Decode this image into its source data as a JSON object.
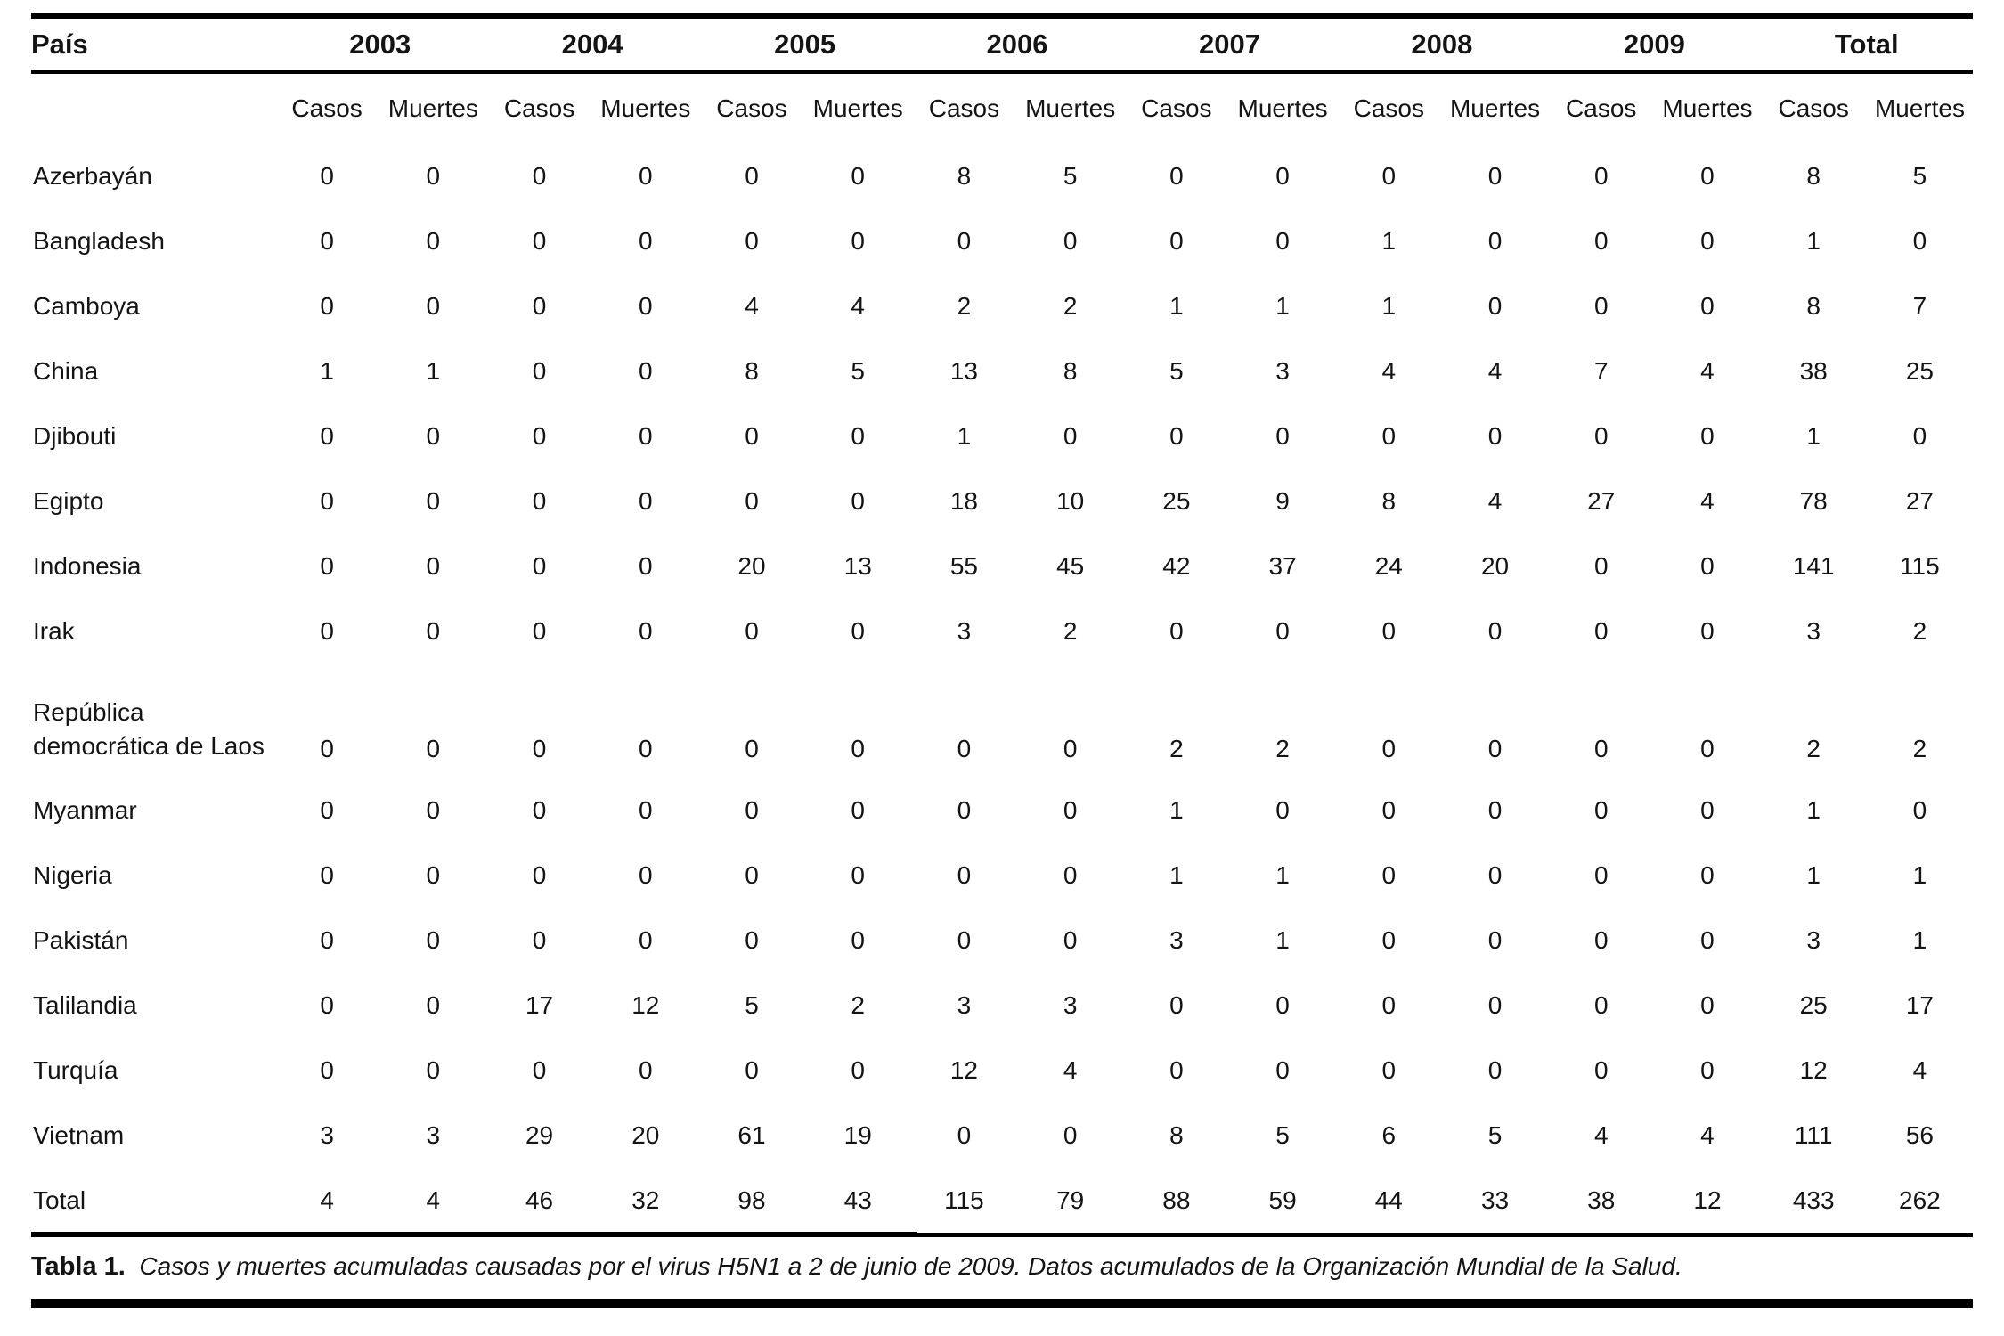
{
  "colors": {
    "text": "#141414",
    "rule": "#000000",
    "background": "#ffffff"
  },
  "table": {
    "corner_header": "País",
    "year_headers": [
      "2003",
      "2004",
      "2005",
      "2006",
      "2007",
      "2008",
      "2009",
      "Total"
    ],
    "sub_headers": {
      "cases": "Casos",
      "deaths": "Muertes"
    },
    "rows": [
      {
        "country": "Azerbayán",
        "values": [
          "0",
          "0",
          "0",
          "0",
          "0",
          "0",
          "8",
          "5",
          "0",
          "0",
          "0",
          "0",
          "0",
          "0",
          "8",
          "5"
        ]
      },
      {
        "country": "Bangladesh",
        "values": [
          "0",
          "0",
          "0",
          "0",
          "0",
          "0",
          "0",
          "0",
          "0",
          "0",
          "1",
          "0",
          "0",
          "0",
          "1",
          "0"
        ]
      },
      {
        "country": "Camboya",
        "values": [
          "0",
          "0",
          "0",
          "0",
          "4",
          "4",
          "2",
          "2",
          "1",
          "1",
          "1",
          "0",
          "0",
          "0",
          "8",
          "7"
        ]
      },
      {
        "country": "China",
        "values": [
          "1",
          "1",
          "0",
          "0",
          "8",
          "5",
          "13",
          "8",
          "5",
          "3",
          "4",
          "4",
          "7",
          "4",
          "38",
          "25"
        ]
      },
      {
        "country": "Djibouti",
        "values": [
          "0",
          "0",
          "0",
          "0",
          "0",
          "0",
          "1",
          "0",
          "0",
          "0",
          "0",
          "0",
          "0",
          "0",
          "1",
          "0"
        ]
      },
      {
        "country": "Egipto",
        "values": [
          "0",
          "0",
          "0",
          "0",
          "0",
          "0",
          "18",
          "10",
          "25",
          "9",
          "8",
          "4",
          "27",
          "4",
          "78",
          "27"
        ]
      },
      {
        "country": "Indonesia",
        "values": [
          "0",
          "0",
          "0",
          "0",
          "20",
          "13",
          "55",
          "45",
          "42",
          "37",
          "24",
          "20",
          "0",
          "0",
          "141",
          "115"
        ]
      },
      {
        "country": "Irak",
        "values": [
          "0",
          "0",
          "0",
          "0",
          "0",
          "0",
          "3",
          "2",
          "0",
          "0",
          "0",
          "0",
          "0",
          "0",
          "3",
          "2"
        ]
      },
      {
        "country": "República democrática de Laos",
        "wrap": true,
        "values": [
          "0",
          "0",
          "0",
          "0",
          "0",
          "0",
          "0",
          "0",
          "2",
          "2",
          "0",
          "0",
          "0",
          "0",
          "2",
          "2"
        ]
      },
      {
        "country": "Myanmar",
        "values": [
          "0",
          "0",
          "0",
          "0",
          "0",
          "0",
          "0",
          "0",
          "1",
          "0",
          "0",
          "0",
          "0",
          "0",
          "1",
          "0"
        ]
      },
      {
        "country": "Nigeria",
        "values": [
          "0",
          "0",
          "0",
          "0",
          "0",
          "0",
          "0",
          "0",
          "1",
          "1",
          "0",
          "0",
          "0",
          "0",
          "1",
          "1"
        ]
      },
      {
        "country": "Pakistán",
        "values": [
          "0",
          "0",
          "0",
          "0",
          "0",
          "0",
          "0",
          "0",
          "3",
          "1",
          "0",
          "0",
          "0",
          "0",
          "3",
          "1"
        ]
      },
      {
        "country": "Talilandia",
        "values": [
          "0",
          "0",
          "17",
          "12",
          "5",
          "2",
          "3",
          "3",
          "0",
          "0",
          "0",
          "0",
          "0",
          "0",
          "25",
          "17"
        ]
      },
      {
        "country": "Turquía",
        "values": [
          "0",
          "0",
          "0",
          "0",
          "0",
          "0",
          "12",
          "4",
          "0",
          "0",
          "0",
          "0",
          "0",
          "0",
          "12",
          "4"
        ]
      },
      {
        "country": "Vietnam",
        "values": [
          "3",
          "3",
          "29",
          "20",
          "61",
          "19",
          "0",
          "0",
          "8",
          "5",
          "6",
          "5",
          "4",
          "4",
          "111",
          "56"
        ]
      },
      {
        "country": "Total",
        "is_total": true,
        "values": [
          "4",
          "4",
          "46",
          "32",
          "98",
          "43",
          "115",
          "79",
          "88",
          "59",
          "44",
          "33",
          "38",
          "12",
          "433",
          "262"
        ]
      }
    ]
  },
  "caption": {
    "label": "Tabla 1.",
    "text": "Casos y muertes acumuladas causadas por el virus H5N1 a 2 de junio de 2009. Datos acumulados de la Organización Mundial de la Salud."
  }
}
